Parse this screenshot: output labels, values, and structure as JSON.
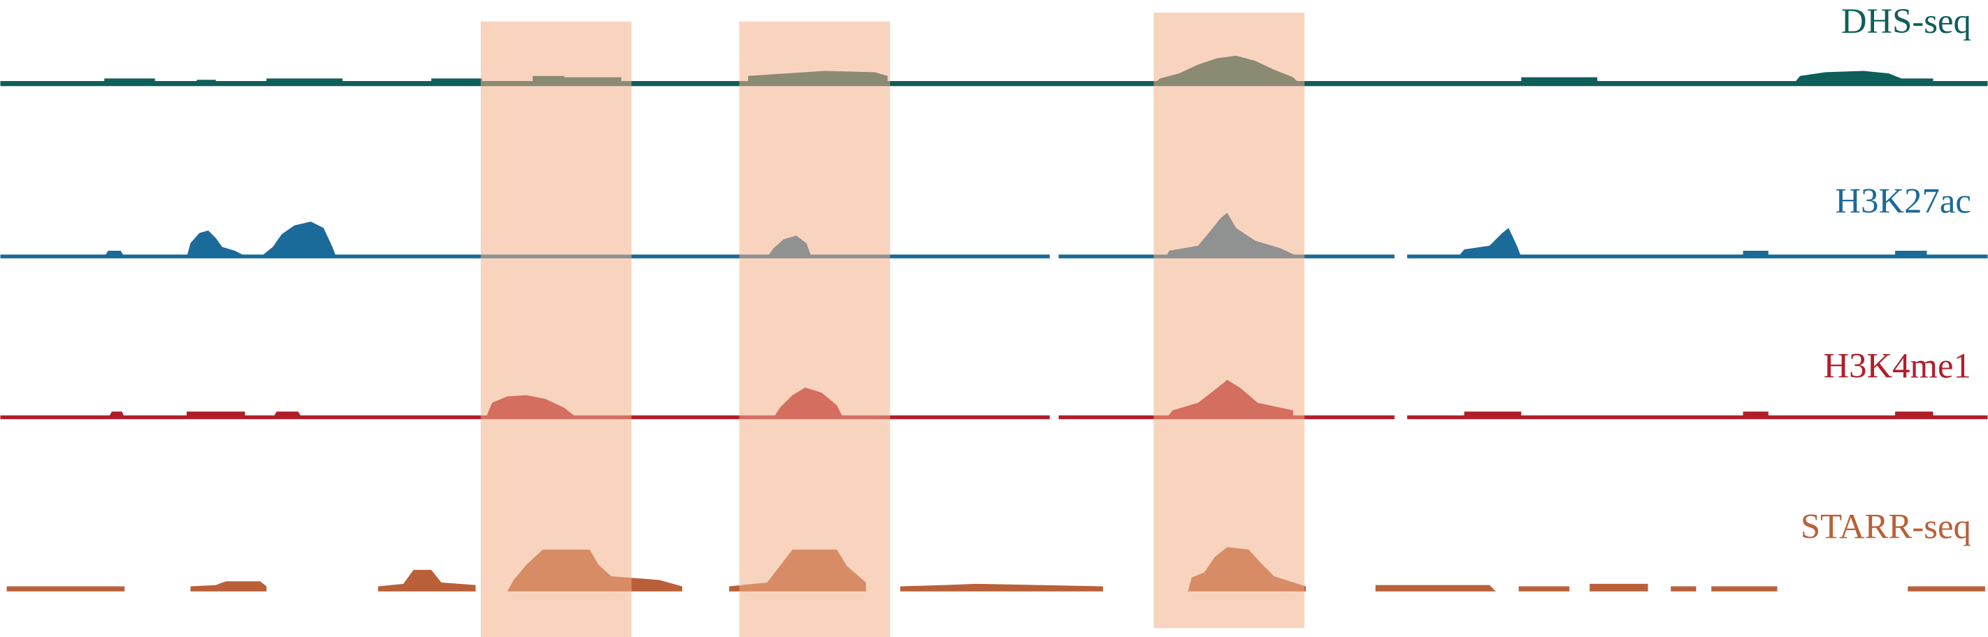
{
  "tracks": [
    {
      "label": "DHS-seq",
      "color": "#0e5e5a"
    },
    {
      "label": "H3K27ac",
      "color": "#1a6a9a"
    },
    {
      "label": "H3K4me1",
      "color": "#b01e2a"
    },
    {
      "label": "STARR-seq",
      "color": "#b9603a"
    }
  ],
  "highlight_color": "#f2b08a"
}
